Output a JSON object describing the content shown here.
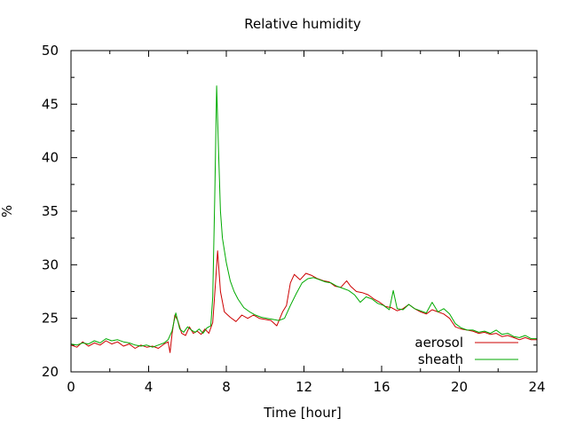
{
  "chart_data": {
    "type": "line",
    "title": "Relative humidity",
    "xlabel": "Time [hour]",
    "ylabel": "%",
    "xlim": [
      0,
      24
    ],
    "ylim": [
      20,
      50
    ],
    "xticks": [
      0,
      4,
      8,
      12,
      16,
      20,
      24
    ],
    "yticks": [
      20,
      25,
      30,
      35,
      40,
      45,
      50
    ],
    "grid": false,
    "legend_position": "bottom-right",
    "series": [
      {
        "name": "aerosol",
        "color": "#cc0000",
        "points": [
          [
            0,
            22.5
          ],
          [
            0.3,
            22.3
          ],
          [
            0.6,
            22.8
          ],
          [
            0.9,
            22.4
          ],
          [
            1.2,
            22.7
          ],
          [
            1.5,
            22.5
          ],
          [
            1.8,
            22.9
          ],
          [
            2.1,
            22.6
          ],
          [
            2.4,
            22.8
          ],
          [
            2.7,
            22.4
          ],
          [
            3.0,
            22.6
          ],
          [
            3.3,
            22.2
          ],
          [
            3.6,
            22.5
          ],
          [
            3.9,
            22.3
          ],
          [
            4.2,
            22.4
          ],
          [
            4.5,
            22.2
          ],
          [
            4.8,
            22.6
          ],
          [
            5.0,
            22.8
          ],
          [
            5.1,
            21.8
          ],
          [
            5.2,
            23.5
          ],
          [
            5.35,
            25.3
          ],
          [
            5.5,
            24.8
          ],
          [
            5.7,
            23.6
          ],
          [
            5.9,
            23.4
          ],
          [
            6.1,
            24.2
          ],
          [
            6.3,
            23.6
          ],
          [
            6.5,
            23.8
          ],
          [
            6.7,
            23.5
          ],
          [
            6.9,
            24.0
          ],
          [
            7.1,
            23.6
          ],
          [
            7.3,
            24.6
          ],
          [
            7.45,
            28.5
          ],
          [
            7.55,
            31.3
          ],
          [
            7.7,
            27.5
          ],
          [
            7.9,
            25.6
          ],
          [
            8.2,
            25.1
          ],
          [
            8.5,
            24.7
          ],
          [
            8.8,
            25.3
          ],
          [
            9.1,
            25.0
          ],
          [
            9.4,
            25.3
          ],
          [
            9.7,
            25.0
          ],
          [
            10.0,
            24.9
          ],
          [
            10.3,
            24.8
          ],
          [
            10.6,
            24.3
          ],
          [
            10.9,
            25.6
          ],
          [
            11.1,
            26.2
          ],
          [
            11.3,
            28.3
          ],
          [
            11.5,
            29.1
          ],
          [
            11.8,
            28.6
          ],
          [
            12.1,
            29.2
          ],
          [
            12.4,
            29.0
          ],
          [
            12.7,
            28.7
          ],
          [
            13.0,
            28.5
          ],
          [
            13.3,
            28.4
          ],
          [
            13.6,
            28.0
          ],
          [
            13.9,
            27.9
          ],
          [
            14.2,
            28.5
          ],
          [
            14.4,
            28.0
          ],
          [
            14.7,
            27.5
          ],
          [
            15.0,
            27.4
          ],
          [
            15.3,
            27.2
          ],
          [
            15.6,
            26.8
          ],
          [
            15.9,
            26.5
          ],
          [
            16.2,
            26.1
          ],
          [
            16.5,
            26.0
          ],
          [
            16.8,
            25.7
          ],
          [
            17.1,
            25.9
          ],
          [
            17.4,
            26.3
          ],
          [
            17.7,
            25.9
          ],
          [
            18.0,
            25.6
          ],
          [
            18.3,
            25.4
          ],
          [
            18.6,
            25.8
          ],
          [
            18.9,
            25.6
          ],
          [
            19.2,
            25.4
          ],
          [
            19.5,
            25.0
          ],
          [
            19.8,
            24.2
          ],
          [
            20.1,
            24.0
          ],
          [
            20.4,
            23.9
          ],
          [
            20.7,
            23.8
          ],
          [
            21.0,
            23.6
          ],
          [
            21.3,
            23.7
          ],
          [
            21.6,
            23.5
          ],
          [
            21.9,
            23.6
          ],
          [
            22.2,
            23.3
          ],
          [
            22.5,
            23.4
          ],
          [
            22.8,
            23.2
          ],
          [
            23.1,
            23.0
          ],
          [
            23.4,
            23.2
          ],
          [
            23.7,
            23.0
          ],
          [
            24.0,
            23.0
          ]
        ]
      },
      {
        "name": "sheath",
        "color": "#00aa00",
        "points": [
          [
            0,
            22.6
          ],
          [
            0.3,
            22.5
          ],
          [
            0.6,
            22.7
          ],
          [
            0.9,
            22.6
          ],
          [
            1.2,
            22.9
          ],
          [
            1.5,
            22.7
          ],
          [
            1.8,
            23.1
          ],
          [
            2.1,
            22.9
          ],
          [
            2.4,
            23.0
          ],
          [
            2.7,
            22.8
          ],
          [
            3.0,
            22.7
          ],
          [
            3.3,
            22.5
          ],
          [
            3.6,
            22.4
          ],
          [
            3.9,
            22.5
          ],
          [
            4.2,
            22.3
          ],
          [
            4.5,
            22.5
          ],
          [
            4.8,
            22.7
          ],
          [
            5.0,
            23.0
          ],
          [
            5.2,
            23.8
          ],
          [
            5.4,
            25.5
          ],
          [
            5.6,
            24.0
          ],
          [
            5.8,
            23.7
          ],
          [
            6.0,
            24.2
          ],
          [
            6.2,
            23.9
          ],
          [
            6.4,
            23.7
          ],
          [
            6.6,
            24.0
          ],
          [
            6.8,
            23.6
          ],
          [
            7.0,
            24.1
          ],
          [
            7.2,
            24.3
          ],
          [
            7.3,
            27.0
          ],
          [
            7.4,
            36.0
          ],
          [
            7.5,
            46.7
          ],
          [
            7.6,
            40.5
          ],
          [
            7.7,
            35.0
          ],
          [
            7.8,
            32.5
          ],
          [
            8.0,
            30.2
          ],
          [
            8.2,
            28.5
          ],
          [
            8.4,
            27.5
          ],
          [
            8.6,
            26.8
          ],
          [
            8.9,
            26.0
          ],
          [
            9.2,
            25.6
          ],
          [
            9.5,
            25.3
          ],
          [
            9.8,
            25.1
          ],
          [
            10.1,
            25.0
          ],
          [
            10.4,
            24.9
          ],
          [
            10.7,
            24.8
          ],
          [
            11.0,
            25.0
          ],
          [
            11.3,
            26.2
          ],
          [
            11.6,
            27.3
          ],
          [
            11.9,
            28.3
          ],
          [
            12.2,
            28.7
          ],
          [
            12.5,
            28.8
          ],
          [
            12.8,
            28.6
          ],
          [
            13.1,
            28.4
          ],
          [
            13.4,
            28.3
          ],
          [
            13.7,
            28.0
          ],
          [
            14.0,
            27.8
          ],
          [
            14.3,
            27.6
          ],
          [
            14.6,
            27.2
          ],
          [
            14.9,
            26.5
          ],
          [
            15.2,
            27.0
          ],
          [
            15.5,
            26.8
          ],
          [
            15.8,
            26.4
          ],
          [
            16.1,
            26.2
          ],
          [
            16.4,
            25.8
          ],
          [
            16.6,
            27.6
          ],
          [
            16.8,
            25.9
          ],
          [
            17.1,
            25.8
          ],
          [
            17.4,
            26.3
          ],
          [
            17.7,
            25.9
          ],
          [
            18.0,
            25.7
          ],
          [
            18.3,
            25.5
          ],
          [
            18.6,
            26.5
          ],
          [
            18.9,
            25.6
          ],
          [
            19.2,
            25.9
          ],
          [
            19.5,
            25.4
          ],
          [
            19.8,
            24.5
          ],
          [
            20.1,
            24.1
          ],
          [
            20.4,
            23.9
          ],
          [
            20.7,
            23.9
          ],
          [
            21.0,
            23.7
          ],
          [
            21.3,
            23.8
          ],
          [
            21.6,
            23.6
          ],
          [
            21.9,
            23.9
          ],
          [
            22.2,
            23.5
          ],
          [
            22.5,
            23.6
          ],
          [
            22.8,
            23.3
          ],
          [
            23.1,
            23.2
          ],
          [
            23.4,
            23.4
          ],
          [
            23.7,
            23.1
          ],
          [
            24.0,
            23.1
          ]
        ]
      }
    ]
  }
}
